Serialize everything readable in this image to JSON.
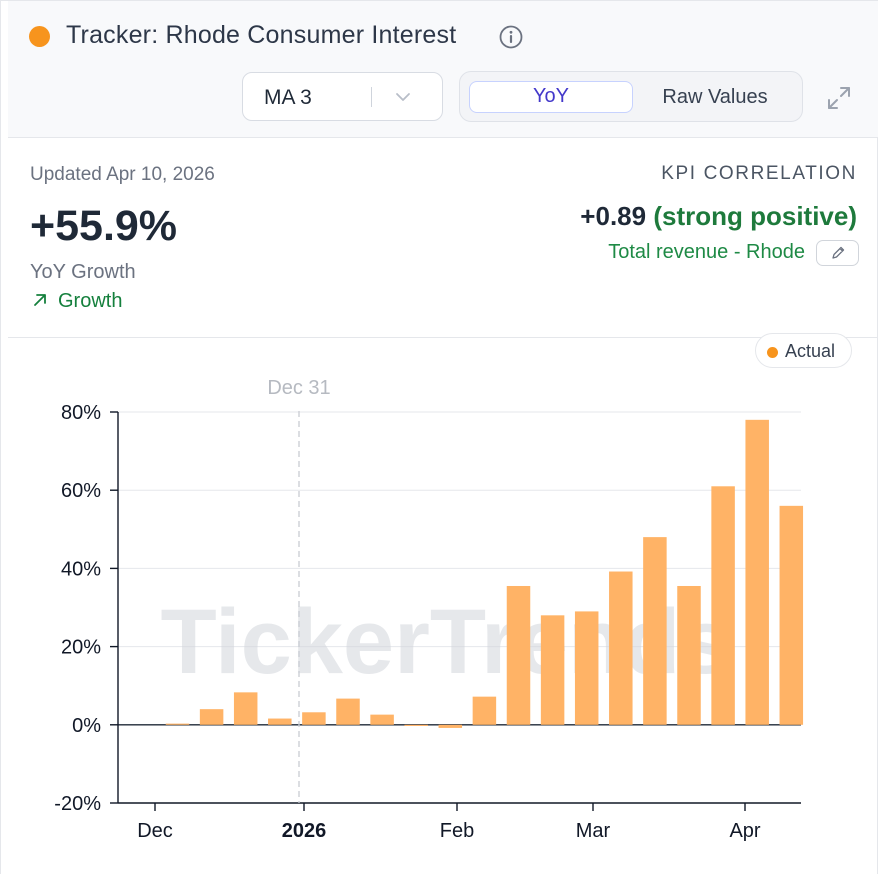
{
  "header": {
    "title": "Tracker: Rhode Consumer Interest",
    "status_color": "#f7941d",
    "info_icon": "info-icon",
    "ma_select": {
      "value": "MA 3"
    },
    "toggle": {
      "yoy_label": "YoY",
      "raw_label": "Raw Values",
      "active": "YoY"
    },
    "expand_icon": "expand-icon"
  },
  "summary": {
    "updated": "Updated Apr 10, 2026",
    "kpi_value": "+55.9%",
    "kpi_label": "YoY Growth",
    "trend_label": "Growth",
    "trend_color": "#15803d"
  },
  "correlation": {
    "heading": "KPI CORRELATION",
    "value": "+0.89",
    "description": "(strong positive)",
    "metric": "Total revenue - Rhode"
  },
  "legend": {
    "label": "Actual",
    "color": "#f7941d"
  },
  "watermark": "TickerTrends",
  "chart_data": {
    "type": "bar",
    "series": [
      {
        "name": "Actual",
        "color": "#ffb366",
        "values": [
          0.3,
          4.0,
          8.3,
          1.6,
          3.2,
          6.7,
          2.6,
          -0.3,
          -0.8,
          7.2,
          35.5,
          28.0,
          29.0,
          39.2,
          48.0,
          35.5,
          61.0,
          78.0,
          56.0
        ]
      }
    ],
    "ylim": [
      -20,
      80
    ],
    "y_ticks": [
      80,
      60,
      40,
      20,
      0,
      -20
    ],
    "y_tick_labels": [
      "80%",
      "60%",
      "40%",
      "20%",
      "0%",
      "-20%"
    ],
    "x_tick_labels": [
      {
        "label": "Dec",
        "bold": false
      },
      {
        "label": "2026",
        "bold": true
      },
      {
        "label": "Feb",
        "bold": false
      },
      {
        "label": "Mar",
        "bold": false
      },
      {
        "label": "Apr",
        "bold": false
      }
    ],
    "marker": {
      "label": "Dec 31"
    },
    "grid": true
  }
}
